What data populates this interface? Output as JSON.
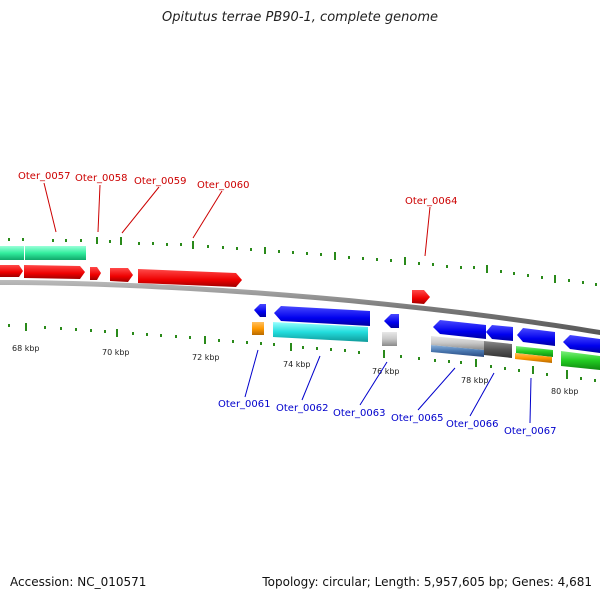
{
  "title": "Opitutus terrae PB90-1, complete genome",
  "footer": {
    "accession": "Accession: NC_010571",
    "summary": "Topology: circular; Length: 5,957,605 bp; Genes: 4,681"
  },
  "colors": {
    "backbone": "#8a8a8a",
    "tick": "#2a8a1a",
    "forward_label": "#cc0000",
    "reverse_label": "#0000cc"
  },
  "kbp_labels": [
    "68 kbp",
    "70 kbp",
    "72 kbp",
    "74 kbp",
    "76 kbp",
    "78 kbp",
    "80 kbp"
  ],
  "forward_genes": [
    {
      "label": "Oter_0057",
      "color": "#ff0000"
    },
    {
      "label": "Oter_0058",
      "color": "#ff0000"
    },
    {
      "label": "Oter_0059",
      "color": "#ff0000"
    },
    {
      "label": "Oter_0060",
      "color": "#ff0000"
    },
    {
      "label": "Oter_0064",
      "color": "#ff0000"
    }
  ],
  "reverse_genes": [
    {
      "label": "Oter_0061",
      "color": "#0000ff"
    },
    {
      "label": "Oter_0062",
      "color": "#0000ff"
    },
    {
      "label": "Oter_0063",
      "color": "#0000ff"
    },
    {
      "label": "Oter_0065",
      "color": "#0000ff"
    },
    {
      "label": "Oter_0066",
      "color": "#0000ff"
    },
    {
      "label": "Oter_0067",
      "color": "#0000ff"
    }
  ]
}
